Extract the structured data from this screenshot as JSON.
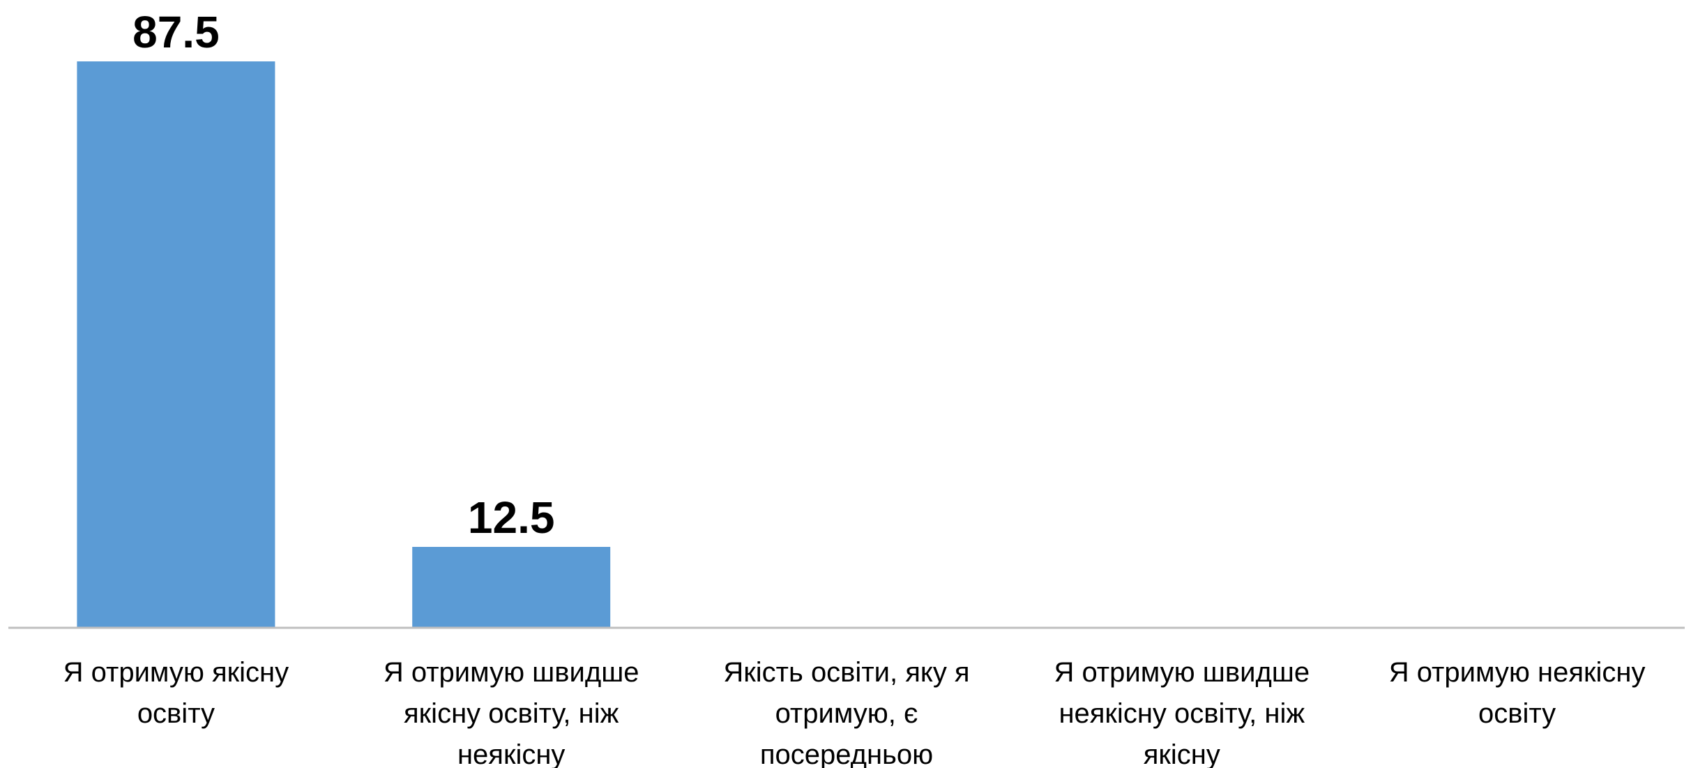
{
  "colors": {
    "bar": "#5b9bd5",
    "axis": "#bfbfbf",
    "text": "#000000"
  },
  "chart_data": {
    "type": "bar",
    "title": "",
    "xlabel": "",
    "ylabel": "",
    "ylim": [
      0,
      87.5
    ],
    "grid": false,
    "legend": "none",
    "categories": [
      [
        "Я отримую якісну",
        "освіту"
      ],
      [
        "Я отримую швидше",
        "якісну освіту, ніж",
        "неякісну"
      ],
      [
        "Якість освіти, яку я",
        "отримую, є",
        "посередньою"
      ],
      [
        "Я отримую швидше",
        "неякісну освіту, ніж",
        "якісну"
      ],
      [
        "Я отримую неякісну",
        "освіту"
      ]
    ],
    "values": [
      87.5,
      12.5,
      0,
      0,
      0
    ],
    "data_labels": [
      "87.5",
      "12.5",
      "",
      "",
      ""
    ]
  }
}
